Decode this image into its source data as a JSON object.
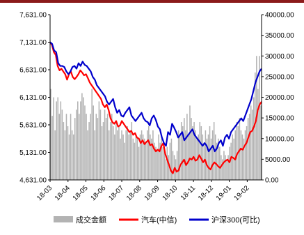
{
  "chart_data": {
    "type": "bar-line-combo",
    "title": "",
    "xlabel": "",
    "ylabel_left": "",
    "ylabel_right": "",
    "left_axis": {
      "min": 4631,
      "max": 7631,
      "ticks": [
        "4,631.00",
        "5,131.00",
        "5,631.00",
        "6,131.00",
        "6,631.00",
        "7,131.00",
        "7,631.00"
      ]
    },
    "right_axis": {
      "min": 0,
      "max": 40000,
      "ticks": [
        "0.00",
        "5000.00",
        "10000.00",
        "15000.00",
        "20000.00",
        "25000.00",
        "30000.00",
        "35000.00",
        "40000.00"
      ]
    },
    "x_ticks": [
      "18-03",
      "18-04",
      "18-05",
      "18-06",
      "18-07",
      "18-08",
      "18-09",
      "18-10",
      "18-11",
      "18-12",
      "19-01",
      "19-02"
    ],
    "legend_position": "bottom",
    "series": [
      {
        "name": "成交金额",
        "axis": "right",
        "kind": "bar",
        "color": "#b3b3b3",
        "values": [
          22000,
          15500,
          20000,
          12000,
          19000,
          20000,
          16000,
          19000,
          17000,
          14000,
          12000,
          16000,
          13000,
          11000,
          16000,
          12000,
          11000,
          15000,
          17000,
          19000,
          16000,
          19000,
          21000,
          20000,
          18000,
          16000,
          12000,
          14000,
          16000,
          22000,
          18000,
          12000,
          16000,
          15000,
          19000,
          17000,
          13000,
          14000,
          17000,
          15000,
          16000,
          12000,
          14000,
          16000,
          13000,
          11000,
          14000,
          12000,
          13000,
          10000,
          12000,
          11000,
          9000,
          12000,
          13000,
          11000,
          12000,
          14000,
          10000,
          9000,
          11000,
          10000,
          8000,
          11000,
          12000,
          11000,
          10000,
          9000,
          12000,
          13000,
          11000,
          10000,
          12000,
          9000,
          8000,
          7000,
          11000,
          9000,
          10000,
          8000,
          7000,
          5000,
          8000,
          6000,
          9000,
          10000,
          7000,
          6000,
          5000,
          7000,
          12000,
          11000,
          14000,
          13000,
          15000,
          12000,
          16000,
          11000,
          18000,
          15000,
          13000,
          14000,
          12000,
          10000,
          11000,
          14000,
          13000,
          11000,
          9000,
          12000,
          10000,
          11000,
          13000,
          10000,
          12000,
          14000,
          11000,
          9000,
          10000,
          8000,
          6000,
          5000,
          7000,
          6000,
          5000,
          6000,
          8000,
          9000,
          11000,
          10000,
          12000,
          14000,
          13000,
          15000,
          12000,
          11000,
          10000,
          12000,
          13000,
          15000,
          16000,
          18000,
          17000,
          20000,
          26000,
          30000,
          22000,
          30000,
          18000
        ]
      },
      {
        "name": "汽车(中信)",
        "axis": "left",
        "kind": "line",
        "color": "#ff0000",
        "values": [
          7131,
          7080,
          6950,
          6900,
          6700,
          6620,
          6650,
          6600,
          6550,
          6450,
          6550,
          6600,
          6500,
          6460,
          6500,
          6550,
          6620,
          6580,
          6530,
          6550,
          6480,
          6400,
          6350,
          6300,
          6250,
          6200,
          6150,
          6100,
          6000,
          5950,
          6000,
          5900,
          5750,
          5680,
          5650,
          5700,
          5600,
          5620,
          5700,
          5650,
          5600,
          5550,
          5500,
          5520,
          5450,
          5480,
          5400,
          5380,
          5300,
          5350,
          5280,
          5320,
          5350,
          5260,
          5280,
          5200,
          5150,
          5180,
          5150,
          5250,
          5300,
          5100,
          5000,
          4900,
          4800,
          4750,
          4850,
          4780,
          4800,
          4900,
          4950,
          5000,
          4900,
          4950,
          5020,
          5000,
          5050,
          4980,
          5000,
          5080,
          5020,
          4950,
          5000,
          4900,
          4850,
          4820,
          4900,
          4950,
          4920,
          4880,
          4850,
          4900,
          4950,
          4980,
          5000,
          4950,
          5050,
          5030,
          5000,
          5100,
          5150,
          5200,
          5180,
          5250,
          5300,
          5400,
          5500,
          5520,
          5600,
          5700,
          5900,
          6000,
          6050
        ]
      },
      {
        "name": "沪深300(可比)",
        "axis": "left",
        "kind": "line",
        "color": "#0000cc",
        "values": [
          7131,
          7100,
          6980,
          6950,
          6750,
          6700,
          6700,
          6680,
          6600,
          6550,
          6600,
          6680,
          6700,
          6650,
          6750,
          6700,
          6780,
          6720,
          6700,
          6650,
          6600,
          6500,
          6450,
          6350,
          6300,
          6250,
          6200,
          6150,
          6050,
          6000,
          6050,
          6100,
          5950,
          5850,
          5900,
          5800,
          5780,
          5850,
          5900,
          5950,
          5800,
          5750,
          5700,
          5750,
          5800,
          5850,
          5750,
          5700,
          5680,
          5620,
          5750,
          5800,
          5720,
          5600,
          5550,
          5400,
          5300,
          5250,
          5500,
          5450,
          5650,
          5580,
          5500,
          5400,
          5450,
          5500,
          5350,
          5400,
          5450,
          5500,
          5550,
          5450,
          5400,
          5350,
          5300,
          5250,
          5300,
          5250,
          5150,
          5200,
          5250,
          5150,
          5200,
          5300,
          5350,
          5250,
          5400,
          5450,
          5380,
          5500,
          5550,
          5600,
          5650,
          5700,
          5750,
          5700,
          5800,
          5900,
          6000,
          6100,
          6250,
          6400,
          6500,
          6600,
          6650
        ]
      }
    ]
  }
}
